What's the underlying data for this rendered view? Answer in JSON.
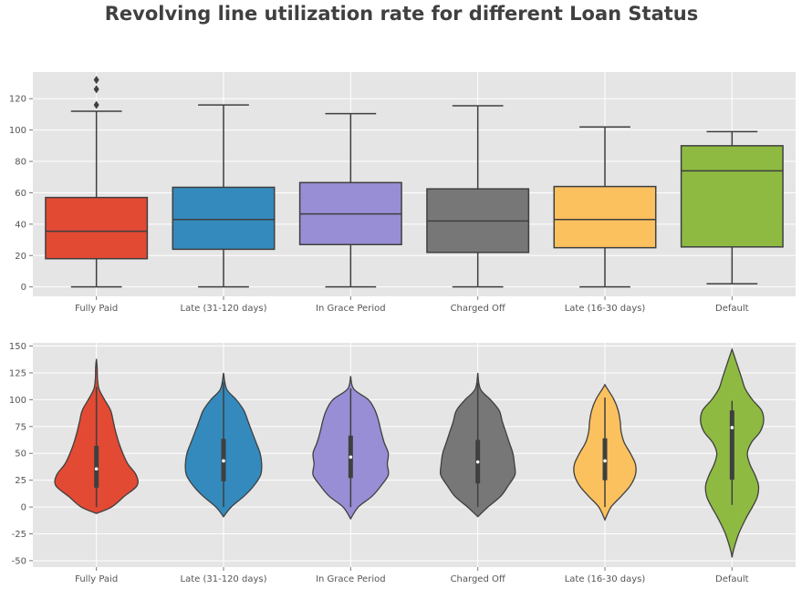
{
  "figure": {
    "title": "Revolving line utilization rate for different Loan Status"
  },
  "colors": {
    "background": "#e5e5e5",
    "grid": "#ffffff",
    "stroke": "#3f3f3f",
    "tick_text": "#555555",
    "title_text": "#404040"
  },
  "chart_data": [
    {
      "type": "box",
      "title": "",
      "xlabel": "",
      "ylabel": "",
      "categories": [
        "Fully Paid",
        "Late (31-120 days)",
        "In Grace Period",
        "Charged Off",
        "Late (16-30 days)",
        "Default"
      ],
      "series_colors": [
        "#e24a33",
        "#348abd",
        "#988ed5",
        "#777777",
        "#fbc15e",
        "#8eba42"
      ],
      "ylim": [
        -6,
        137
      ],
      "yticks": [
        0,
        20,
        40,
        60,
        80,
        100,
        120
      ],
      "grid": true,
      "boxes": [
        {
          "category": "Fully Paid",
          "min": 0,
          "q1": 18,
          "median": 35.5,
          "q3": 57,
          "max": 112,
          "outliers": [
            116,
            126,
            132
          ]
        },
        {
          "category": "Late (31-120 days)",
          "min": 0,
          "q1": 24,
          "median": 43,
          "q3": 63.5,
          "max": 116,
          "outliers": []
        },
        {
          "category": "In Grace Period",
          "min": 0,
          "q1": 27,
          "median": 46.5,
          "q3": 66.5,
          "max": 110.5,
          "outliers": []
        },
        {
          "category": "Charged Off",
          "min": 0,
          "q1": 22,
          "median": 42,
          "q3": 62.5,
          "max": 115.5,
          "outliers": []
        },
        {
          "category": "Late (16-30 days)",
          "min": 0,
          "q1": 25,
          "median": 43,
          "q3": 64,
          "max": 102,
          "outliers": []
        },
        {
          "category": "Default",
          "min": 2,
          "q1": 25.5,
          "median": 74,
          "q3": 90,
          "max": 99,
          "outliers": []
        }
      ]
    },
    {
      "type": "violin",
      "title": "",
      "xlabel": "",
      "ylabel": "",
      "categories": [
        "Fully Paid",
        "Late (31-120 days)",
        "In Grace Period",
        "Charged Off",
        "Late (16-30 days)",
        "Default"
      ],
      "series_colors": [
        "#e24a33",
        "#348abd",
        "#988ed5",
        "#777777",
        "#fbc15e",
        "#8eba42"
      ],
      "ylim": [
        -56,
        153
      ],
      "yticks": [
        -50,
        -25,
        0,
        25,
        50,
        75,
        100,
        125,
        150
      ],
      "grid": true,
      "violins": [
        {
          "category": "Fully Paid",
          "q1": 18,
          "median": 35.5,
          "q3": 57,
          "wlow": 0,
          "whigh": 112,
          "profile": [
            [
              -6,
              0
            ],
            [
              0,
              0.3
            ],
            [
              10,
              0.55
            ],
            [
              20,
              0.8
            ],
            [
              30,
              0.78
            ],
            [
              40,
              0.62
            ],
            [
              50,
              0.52
            ],
            [
              60,
              0.44
            ],
            [
              70,
              0.38
            ],
            [
              80,
              0.33
            ],
            [
              90,
              0.28
            ],
            [
              100,
              0.16
            ],
            [
              110,
              0.05
            ],
            [
              120,
              0.02
            ],
            [
              130,
              0.015
            ],
            [
              138,
              0
            ]
          ]
        },
        {
          "category": "Late (31-120 days)",
          "q1": 24,
          "median": 43,
          "q3": 63.5,
          "wlow": 0,
          "whigh": 116,
          "profile": [
            [
              -9,
              0
            ],
            [
              0,
              0.15
            ],
            [
              10,
              0.4
            ],
            [
              20,
              0.6
            ],
            [
              30,
              0.73
            ],
            [
              40,
              0.75
            ],
            [
              50,
              0.72
            ],
            [
              60,
              0.64
            ],
            [
              70,
              0.56
            ],
            [
              80,
              0.48
            ],
            [
              90,
              0.4
            ],
            [
              100,
              0.25
            ],
            [
              110,
              0.06
            ],
            [
              125,
              0
            ]
          ]
        },
        {
          "category": "In Grace Period",
          "q1": 27,
          "median": 46.5,
          "q3": 66.5,
          "wlow": 0,
          "whigh": 110.5,
          "profile": [
            [
              -11,
              0
            ],
            [
              0,
              0.15
            ],
            [
              10,
              0.42
            ],
            [
              20,
              0.6
            ],
            [
              30,
              0.74
            ],
            [
              40,
              0.72
            ],
            [
              50,
              0.74
            ],
            [
              60,
              0.66
            ],
            [
              70,
              0.6
            ],
            [
              80,
              0.55
            ],
            [
              90,
              0.48
            ],
            [
              100,
              0.35
            ],
            [
              110,
              0.06
            ],
            [
              122,
              0
            ]
          ]
        },
        {
          "category": "Charged Off",
          "q1": 22,
          "median": 42,
          "q3": 62.5,
          "wlow": 0,
          "whigh": 115.5,
          "profile": [
            [
              -9,
              0
            ],
            [
              0,
              0.2
            ],
            [
              10,
              0.45
            ],
            [
              20,
              0.6
            ],
            [
              30,
              0.73
            ],
            [
              40,
              0.72
            ],
            [
              50,
              0.69
            ],
            [
              60,
              0.62
            ],
            [
              70,
              0.55
            ],
            [
              80,
              0.48
            ],
            [
              90,
              0.42
            ],
            [
              100,
              0.25
            ],
            [
              110,
              0.05
            ],
            [
              125,
              0
            ]
          ]
        },
        {
          "category": "Late (16-30 days)",
          "q1": 25,
          "median": 43,
          "q3": 64,
          "wlow": 0,
          "whigh": 102,
          "profile": [
            [
              -12,
              0
            ],
            [
              0,
              0.12
            ],
            [
              10,
              0.32
            ],
            [
              20,
              0.5
            ],
            [
              30,
              0.6
            ],
            [
              40,
              0.6
            ],
            [
              50,
              0.5
            ],
            [
              60,
              0.38
            ],
            [
              70,
              0.32
            ],
            [
              80,
              0.3
            ],
            [
              90,
              0.26
            ],
            [
              100,
              0.18
            ],
            [
              110,
              0.05
            ],
            [
              114,
              0
            ]
          ]
        },
        {
          "category": "Default",
          "q1": 25.5,
          "median": 74,
          "q3": 90,
          "wlow": 2,
          "whigh": 99,
          "profile": [
            [
              -47,
              0
            ],
            [
              -40,
              0.03
            ],
            [
              -25,
              0.13
            ],
            [
              -10,
              0.28
            ],
            [
              0,
              0.4
            ],
            [
              10,
              0.5
            ],
            [
              20,
              0.52
            ],
            [
              30,
              0.45
            ],
            [
              40,
              0.35
            ],
            [
              50,
              0.3
            ],
            [
              60,
              0.38
            ],
            [
              70,
              0.55
            ],
            [
              80,
              0.62
            ],
            [
              90,
              0.58
            ],
            [
              100,
              0.4
            ],
            [
              110,
              0.26
            ],
            [
              120,
              0.19
            ],
            [
              130,
              0.12
            ],
            [
              140,
              0.05
            ],
            [
              147,
              0
            ]
          ]
        }
      ]
    }
  ]
}
